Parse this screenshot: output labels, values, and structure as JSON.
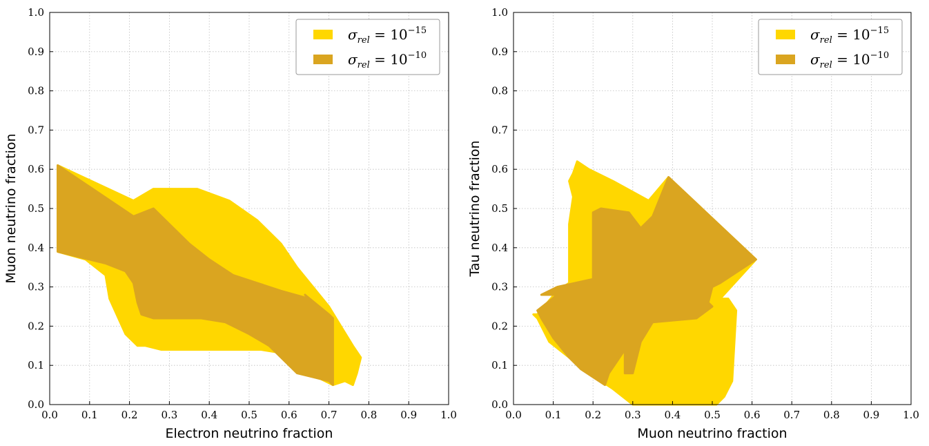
{
  "chart_data": [
    {
      "type": "area",
      "xlabel": "Electron neutrino fraction",
      "ylabel": "Muon neutrino fraction",
      "xlim": [
        0.0,
        1.0
      ],
      "ylim": [
        0.0,
        1.0
      ],
      "xticks": [
        "0.0",
        "0.1",
        "0.2",
        "0.3",
        "0.4",
        "0.5",
        "0.6",
        "0.7",
        "0.8",
        "0.9",
        "1.0"
      ],
      "yticks": [
        "0.0",
        "0.1",
        "0.2",
        "0.3",
        "0.4",
        "0.5",
        "0.6",
        "0.7",
        "0.8",
        "0.9",
        "1.0"
      ],
      "grid": true,
      "legend_position": "top-right",
      "series": [
        {
          "name": "σrel = 10^-15",
          "legend": {
            "symbol": "σ",
            "sub": "rel",
            "eq": " = 10",
            "sup": "−15"
          },
          "color": "#FFD700",
          "polygon": [
            [
              0.02,
              0.61
            ],
            [
              0.21,
              0.52
            ],
            [
              0.26,
              0.55
            ],
            [
              0.37,
              0.55
            ],
            [
              0.45,
              0.52
            ],
            [
              0.52,
              0.47
            ],
            [
              0.58,
              0.41
            ],
            [
              0.62,
              0.35
            ],
            [
              0.66,
              0.3
            ],
            [
              0.7,
              0.25
            ],
            [
              0.73,
              0.2
            ],
            [
              0.76,
              0.15
            ],
            [
              0.78,
              0.12
            ],
            [
              0.77,
              0.08
            ],
            [
              0.76,
              0.05
            ],
            [
              0.74,
              0.06
            ],
            [
              0.71,
              0.05
            ],
            [
              0.69,
              0.06
            ],
            [
              0.63,
              0.09
            ],
            [
              0.59,
              0.13
            ],
            [
              0.53,
              0.14
            ],
            [
              0.45,
              0.14
            ],
            [
              0.4,
              0.14
            ],
            [
              0.33,
              0.14
            ],
            [
              0.28,
              0.14
            ],
            [
              0.24,
              0.15
            ],
            [
              0.22,
              0.15
            ],
            [
              0.19,
              0.18
            ],
            [
              0.15,
              0.27
            ],
            [
              0.14,
              0.33
            ],
            [
              0.09,
              0.37
            ],
            [
              0.02,
              0.39
            ],
            [
              0.02,
              0.61
            ]
          ]
        },
        {
          "name": "σrel = 10^-10",
          "legend": {
            "symbol": "σ",
            "sub": "rel",
            "eq": " = 10",
            "sup": "−10"
          },
          "color": "#DAA520",
          "polygon": [
            [
              0.02,
              0.61
            ],
            [
              0.21,
              0.48
            ],
            [
              0.26,
              0.5
            ],
            [
              0.3,
              0.46
            ],
            [
              0.35,
              0.41
            ],
            [
              0.4,
              0.37
            ],
            [
              0.46,
              0.33
            ],
            [
              0.52,
              0.31
            ],
            [
              0.58,
              0.29
            ],
            [
              0.65,
              0.27
            ],
            [
              0.64,
              0.28
            ],
            [
              0.7,
              0.23
            ],
            [
              0.71,
              0.22
            ],
            [
              0.71,
              0.05
            ],
            [
              0.7,
              0.06
            ],
            [
              0.66,
              0.07
            ],
            [
              0.62,
              0.08
            ],
            [
              0.55,
              0.15
            ],
            [
              0.5,
              0.18
            ],
            [
              0.44,
              0.21
            ],
            [
              0.38,
              0.22
            ],
            [
              0.31,
              0.22
            ],
            [
              0.26,
              0.22
            ],
            [
              0.23,
              0.23
            ],
            [
              0.22,
              0.26
            ],
            [
              0.21,
              0.31
            ],
            [
              0.19,
              0.34
            ],
            [
              0.14,
              0.36
            ],
            [
              0.06,
              0.38
            ],
            [
              0.02,
              0.39
            ],
            [
              0.02,
              0.61
            ]
          ]
        }
      ]
    },
    {
      "type": "area",
      "xlabel": "Muon neutrino fraction",
      "ylabel": "Tau neutrino fraction",
      "xlim": [
        0.0,
        1.0
      ],
      "ylim": [
        0.0,
        1.0
      ],
      "xticks": [
        "0.0",
        "0.1",
        "0.2",
        "0.3",
        "0.4",
        "0.5",
        "0.6",
        "0.7",
        "0.8",
        "0.9",
        "1.0"
      ],
      "yticks": [
        "0.0",
        "0.1",
        "0.2",
        "0.3",
        "0.4",
        "0.5",
        "0.6",
        "0.7",
        "0.8",
        "0.9",
        "1.0"
      ],
      "grid": true,
      "legend_position": "top-right",
      "series": [
        {
          "name": "σrel = 10^-15",
          "legend": {
            "symbol": "σ",
            "sub": "rel",
            "eq": " = 10",
            "sup": "−15"
          },
          "color": "#FFD700",
          "polygon": [
            [
              0.16,
              0.62
            ],
            [
              0.19,
              0.6
            ],
            [
              0.25,
              0.57
            ],
            [
              0.34,
              0.52
            ],
            [
              0.39,
              0.58
            ],
            [
              0.61,
              0.37
            ],
            [
              0.52,
              0.27
            ],
            [
              0.54,
              0.27
            ],
            [
              0.56,
              0.24
            ],
            [
              0.55,
              0.06
            ],
            [
              0.53,
              0.02
            ],
            [
              0.51,
              0.0
            ],
            [
              0.48,
              0.0
            ],
            [
              0.43,
              0.0
            ],
            [
              0.38,
              0.0
            ],
            [
              0.34,
              0.0
            ],
            [
              0.3,
              0.0
            ],
            [
              0.25,
              0.04
            ],
            [
              0.22,
              0.06
            ],
            [
              0.18,
              0.11
            ],
            [
              0.14,
              0.12
            ],
            [
              0.09,
              0.16
            ],
            [
              0.06,
              0.22
            ],
            [
              0.05,
              0.23
            ],
            [
              0.06,
              0.23
            ],
            [
              0.11,
              0.29
            ],
            [
              0.14,
              0.31
            ],
            [
              0.14,
              0.4
            ],
            [
              0.14,
              0.46
            ],
            [
              0.15,
              0.53
            ],
            [
              0.14,
              0.57
            ],
            [
              0.15,
              0.59
            ],
            [
              0.16,
              0.62
            ]
          ]
        },
        {
          "name": "σrel = 10^-10",
          "legend": {
            "symbol": "σ",
            "sub": "rel",
            "eq": " = 10",
            "sup": "−10"
          },
          "color": "#DAA520",
          "polygon": [
            [
              0.07,
              0.28
            ],
            [
              0.11,
              0.3
            ],
            [
              0.2,
              0.32
            ],
            [
              0.2,
              0.49
            ],
            [
              0.22,
              0.5
            ],
            [
              0.29,
              0.49
            ],
            [
              0.32,
              0.45
            ],
            [
              0.35,
              0.48
            ],
            [
              0.39,
              0.58
            ],
            [
              0.61,
              0.37
            ],
            [
              0.52,
              0.31
            ],
            [
              0.5,
              0.3
            ],
            [
              0.49,
              0.26
            ],
            [
              0.5,
              0.25
            ],
            [
              0.46,
              0.22
            ],
            [
              0.35,
              0.21
            ],
            [
              0.32,
              0.16
            ],
            [
              0.3,
              0.08
            ],
            [
              0.28,
              0.08
            ],
            [
              0.28,
              0.14
            ],
            [
              0.26,
              0.11
            ],
            [
              0.24,
              0.08
            ],
            [
              0.23,
              0.05
            ],
            [
              0.17,
              0.09
            ],
            [
              0.14,
              0.12
            ],
            [
              0.1,
              0.17
            ],
            [
              0.07,
              0.22
            ],
            [
              0.06,
              0.24
            ],
            [
              0.11,
              0.28
            ],
            [
              0.07,
              0.28
            ]
          ]
        }
      ]
    }
  ]
}
